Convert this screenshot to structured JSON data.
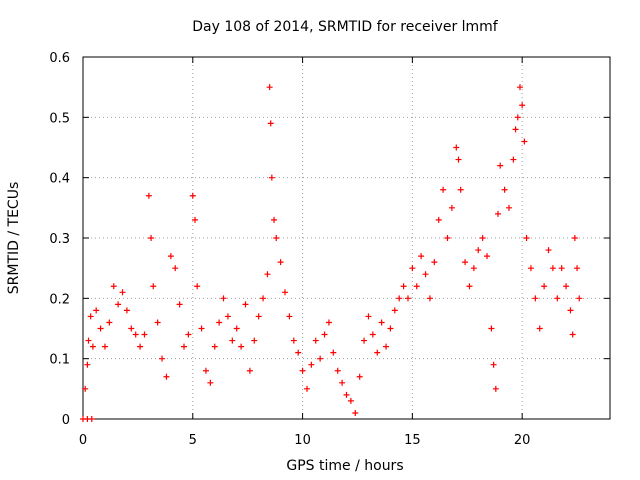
{
  "chart_data": {
    "type": "scatter",
    "title": "Day 108 of 2014, SRMTID for receiver lmmf",
    "xlabel": "GPS time / hours",
    "ylabel": "SRMTID / TECUs",
    "xlim": [
      0,
      24
    ],
    "ylim": [
      0,
      0.6
    ],
    "x_ticks": [
      0,
      5,
      10,
      15,
      20
    ],
    "x_tick_labels": [
      "0",
      "5",
      "10",
      "15",
      "20"
    ],
    "y_ticks": [
      0,
      0.1,
      0.2,
      0.3,
      0.4,
      0.5,
      0.6
    ],
    "y_tick_labels": [
      "0",
      "0.1",
      "0.2",
      "0.3",
      "0.4",
      "0.5",
      "0.6"
    ],
    "grid": true,
    "marker": "+",
    "series": [
      {
        "name": "SRMTID",
        "color": "#ff0000",
        "points": [
          [
            0.0,
            0.0
          ],
          [
            0.2,
            0.0
          ],
          [
            0.4,
            0.0
          ],
          [
            0.1,
            0.05
          ],
          [
            0.2,
            0.09
          ],
          [
            0.25,
            0.13
          ],
          [
            0.35,
            0.17
          ],
          [
            0.45,
            0.12
          ],
          [
            0.6,
            0.18
          ],
          [
            0.8,
            0.15
          ],
          [
            1.0,
            0.12
          ],
          [
            1.2,
            0.16
          ],
          [
            1.4,
            0.22
          ],
          [
            1.6,
            0.19
          ],
          [
            1.8,
            0.21
          ],
          [
            2.0,
            0.18
          ],
          [
            2.2,
            0.15
          ],
          [
            2.4,
            0.14
          ],
          [
            2.6,
            0.12
          ],
          [
            2.8,
            0.14
          ],
          [
            3.0,
            0.37
          ],
          [
            3.1,
            0.3
          ],
          [
            3.2,
            0.22
          ],
          [
            3.4,
            0.16
          ],
          [
            3.6,
            0.1
          ],
          [
            3.8,
            0.07
          ],
          [
            4.0,
            0.27
          ],
          [
            4.2,
            0.25
          ],
          [
            4.4,
            0.19
          ],
          [
            4.6,
            0.12
          ],
          [
            4.8,
            0.14
          ],
          [
            5.0,
            0.37
          ],
          [
            5.1,
            0.33
          ],
          [
            5.2,
            0.22
          ],
          [
            5.4,
            0.15
          ],
          [
            5.6,
            0.08
          ],
          [
            5.8,
            0.06
          ],
          [
            6.0,
            0.12
          ],
          [
            6.2,
            0.16
          ],
          [
            6.4,
            0.2
          ],
          [
            6.6,
            0.17
          ],
          [
            6.8,
            0.13
          ],
          [
            7.0,
            0.15
          ],
          [
            7.2,
            0.12
          ],
          [
            7.4,
            0.19
          ],
          [
            7.6,
            0.08
          ],
          [
            7.8,
            0.13
          ],
          [
            8.0,
            0.17
          ],
          [
            8.2,
            0.2
          ],
          [
            8.4,
            0.24
          ],
          [
            8.5,
            0.55
          ],
          [
            8.55,
            0.49
          ],
          [
            8.6,
            0.4
          ],
          [
            8.7,
            0.33
          ],
          [
            8.8,
            0.3
          ],
          [
            9.0,
            0.26
          ],
          [
            9.2,
            0.21
          ],
          [
            9.4,
            0.17
          ],
          [
            9.6,
            0.13
          ],
          [
            9.8,
            0.11
          ],
          [
            10.0,
            0.08
          ],
          [
            10.2,
            0.05
          ],
          [
            10.4,
            0.09
          ],
          [
            10.6,
            0.13
          ],
          [
            10.8,
            0.1
          ],
          [
            11.0,
            0.14
          ],
          [
            11.2,
            0.16
          ],
          [
            11.4,
            0.11
          ],
          [
            11.6,
            0.08
          ],
          [
            11.8,
            0.06
          ],
          [
            12.0,
            0.04
          ],
          [
            12.2,
            0.03
          ],
          [
            12.4,
            0.01
          ],
          [
            12.6,
            0.07
          ],
          [
            12.8,
            0.13
          ],
          [
            13.0,
            0.17
          ],
          [
            13.2,
            0.14
          ],
          [
            13.4,
            0.11
          ],
          [
            13.6,
            0.16
          ],
          [
            13.8,
            0.12
          ],
          [
            14.0,
            0.15
          ],
          [
            14.2,
            0.18
          ],
          [
            14.4,
            0.2
          ],
          [
            14.6,
            0.22
          ],
          [
            14.8,
            0.2
          ],
          [
            15.0,
            0.25
          ],
          [
            15.2,
            0.22
          ],
          [
            15.4,
            0.27
          ],
          [
            15.6,
            0.24
          ],
          [
            15.8,
            0.2
          ],
          [
            16.0,
            0.26
          ],
          [
            16.2,
            0.33
          ],
          [
            16.4,
            0.38
          ],
          [
            16.6,
            0.3
          ],
          [
            16.8,
            0.35
          ],
          [
            17.0,
            0.45
          ],
          [
            17.1,
            0.43
          ],
          [
            17.2,
            0.38
          ],
          [
            17.4,
            0.26
          ],
          [
            17.6,
            0.22
          ],
          [
            17.8,
            0.25
          ],
          [
            18.0,
            0.28
          ],
          [
            18.2,
            0.3
          ],
          [
            18.4,
            0.27
          ],
          [
            18.6,
            0.15
          ],
          [
            18.7,
            0.09
          ],
          [
            18.8,
            0.05
          ],
          [
            18.9,
            0.34
          ],
          [
            19.0,
            0.42
          ],
          [
            19.2,
            0.38
          ],
          [
            19.4,
            0.35
          ],
          [
            19.6,
            0.43
          ],
          [
            19.7,
            0.48
          ],
          [
            19.8,
            0.5
          ],
          [
            19.9,
            0.55
          ],
          [
            20.0,
            0.52
          ],
          [
            20.1,
            0.46
          ],
          [
            20.2,
            0.3
          ],
          [
            20.4,
            0.25
          ],
          [
            20.6,
            0.2
          ],
          [
            20.8,
            0.15
          ],
          [
            21.0,
            0.22
          ],
          [
            21.2,
            0.28
          ],
          [
            21.4,
            0.25
          ],
          [
            21.6,
            0.2
          ],
          [
            21.8,
            0.25
          ],
          [
            22.0,
            0.22
          ],
          [
            22.2,
            0.18
          ],
          [
            22.3,
            0.14
          ],
          [
            22.4,
            0.3
          ],
          [
            22.5,
            0.25
          ],
          [
            22.6,
            0.2
          ]
        ]
      }
    ]
  }
}
